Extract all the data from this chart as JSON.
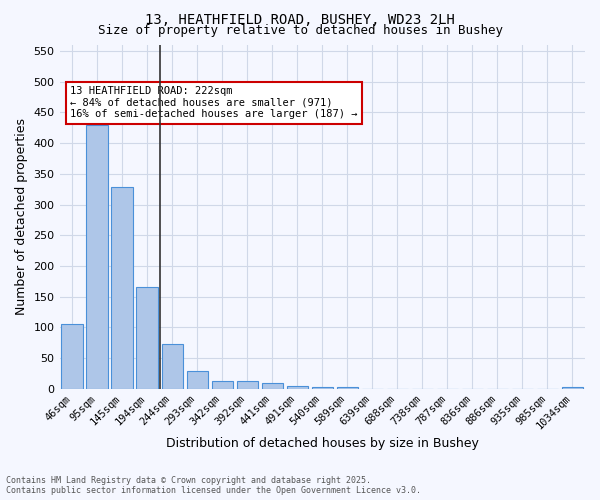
{
  "title1": "13, HEATHFIELD ROAD, BUSHEY, WD23 2LH",
  "title2": "Size of property relative to detached houses in Bushey",
  "xlabel": "Distribution of detached houses by size in Bushey",
  "ylabel": "Number of detached properties",
  "categories": [
    "46sqm",
    "95sqm",
    "145sqm",
    "194sqm",
    "244sqm",
    "293sqm",
    "342sqm",
    "392sqm",
    "441sqm",
    "491sqm",
    "540sqm",
    "589sqm",
    "639sqm",
    "688sqm",
    "738sqm",
    "787sqm",
    "836sqm",
    "886sqm",
    "935sqm",
    "985sqm",
    "1034sqm"
  ],
  "values": [
    105,
    430,
    328,
    165,
    73,
    28,
    12,
    12,
    9,
    5,
    3,
    2,
    0,
    0,
    0,
    0,
    0,
    0,
    0,
    0,
    3
  ],
  "bar_color": "#aec6e8",
  "bar_edge_color": "#4a90d9",
  "grid_color": "#d0d8e8",
  "background_color": "#f5f7ff",
  "property_line_x": 3,
  "annotation_text": "13 HEATHFIELD ROAD: 222sqm\n← 84% of detached houses are smaller (971)\n16% of semi-detached houses are larger (187) →",
  "annotation_box_color": "#cc0000",
  "ylim": [
    0,
    560
  ],
  "yticks": [
    0,
    50,
    100,
    150,
    200,
    250,
    300,
    350,
    400,
    450,
    500,
    550
  ],
  "footer_line1": "Contains HM Land Registry data © Crown copyright and database right 2025.",
  "footer_line2": "Contains public sector information licensed under the Open Government Licence v3.0."
}
